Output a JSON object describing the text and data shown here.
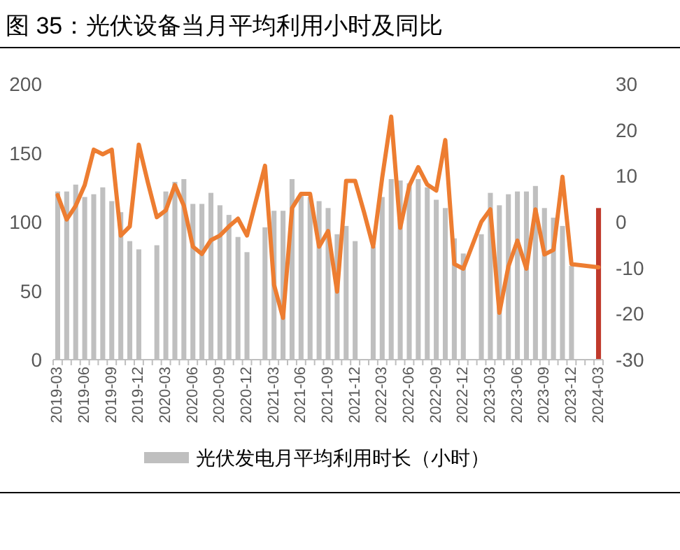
{
  "chart_data": {
    "type": "bar",
    "title": "图 35：光伏设备当月平均利用小时及同比",
    "categories": [
      "2019-03",
      null,
      null,
      "2019-06",
      null,
      null,
      "2019-09",
      null,
      null,
      "2019-12",
      null,
      null,
      "2020-03",
      null,
      null,
      "2020-06",
      null,
      null,
      "2020-09",
      null,
      null,
      "2020-12",
      null,
      null,
      "2021-03",
      null,
      null,
      "2021-06",
      null,
      null,
      "2021-09",
      null,
      null,
      "2021-12",
      null,
      null,
      "2022-03",
      null,
      null,
      "2022-06",
      null,
      null,
      "2022-09",
      null,
      null,
      "2022-12",
      null,
      null,
      "2023-03",
      null,
      null,
      "2023-06",
      null,
      null,
      "2023-09",
      null,
      null,
      "2023-12",
      null,
      null,
      "2024-03"
    ],
    "series": [
      {
        "name": "光伏发电月平均利用时长（小时）",
        "color": "#bfbfbf",
        "colors": [
          "#bfbfbf",
          "#bfbfbf",
          "#bfbfbf",
          "#bfbfbf",
          "#bfbfbf",
          "#bfbfbf",
          "#bfbfbf",
          "#bfbfbf",
          "#bfbfbf",
          "#bfbfbf",
          "#bfbfbf",
          "#bfbfbf",
          "#bfbfbf",
          "#bfbfbf",
          "#bfbfbf",
          "#bfbfbf",
          "#bfbfbf",
          "#bfbfbf",
          "#bfbfbf",
          "#bfbfbf",
          "#bfbfbf",
          "#bfbfbf",
          "#bfbfbf",
          "#bfbfbf",
          "#bfbfbf",
          "#bfbfbf",
          "#bfbfbf",
          "#bfbfbf",
          "#bfbfbf",
          "#bfbfbf",
          "#bfbfbf",
          "#bfbfbf",
          "#bfbfbf",
          "#bfbfbf",
          "#bfbfbf",
          "#bfbfbf",
          "#bfbfbf",
          "#bfbfbf",
          "#bfbfbf",
          "#bfbfbf",
          "#bfbfbf",
          "#bfbfbf",
          "#bfbfbf",
          "#bfbfbf",
          "#bfbfbf",
          "#bfbfbf",
          "#bfbfbf",
          "#bfbfbf",
          "#bfbfbf",
          "#bfbfbf",
          "#bfbfbf",
          "#bfbfbf",
          "#bfbfbf",
          "#bfbfbf",
          "#bfbfbf",
          "#bfbfbf",
          "#bfbfbf",
          "#bfbfbf",
          "#bfbfbf",
          "#bfbfbf",
          "#c0392b"
        ],
        "values": [
          122,
          122,
          127,
          118,
          120,
          125,
          115,
          107,
          86,
          80,
          null,
          83,
          122,
          129,
          131,
          113,
          113,
          121,
          112,
          105,
          89,
          78,
          null,
          96,
          108,
          108,
          131,
          120,
          118,
          115,
          110,
          91,
          97,
          86,
          null,
          82,
          118,
          131,
          130,
          128,
          131,
          125,
          116,
          110,
          88,
          77,
          null,
          91,
          121,
          112,
          120,
          122,
          122,
          126,
          110,
          103,
          97,
          68,
          null,
          null,
          110
        ]
      },
      {
        "type": "line",
        "axis": "y2",
        "color": "#ed7d31",
        "values": [
          5.8,
          0.5,
          3.5,
          8,
          15.7,
          14.7,
          15.7,
          -3,
          -1,
          16.8,
          8.6,
          1,
          2.5,
          8,
          3.5,
          -5.4,
          -7,
          -4,
          -3,
          -1,
          0.7,
          -3,
          4.6,
          12.2,
          -13.7,
          -20.9,
          3,
          6.1,
          6.1,
          -5.4,
          -2,
          -15.2,
          8.9,
          8.9,
          2,
          -5.4,
          9.6,
          22.9,
          -1.3,
          7.8,
          11.9,
          8.1,
          6.8,
          17.8,
          -9.2,
          -10.2,
          -5.1,
          0,
          2.7,
          -19.8,
          -9.7,
          -4.1,
          -10.2,
          2.7,
          -7.1,
          -6.1,
          9.8,
          -9.2,
          null,
          null,
          -9.9
        ]
      }
    ],
    "ylim": [
      0,
      200
    ],
    "yticks": [
      0,
      50,
      100,
      150,
      200
    ],
    "y2lim": [
      -30,
      30
    ],
    "y2ticks": [
      -30,
      -20,
      -10,
      0,
      10,
      20,
      30
    ],
    "legend": "bottom",
    "marker": "none",
    "line_style": "solid"
  }
}
